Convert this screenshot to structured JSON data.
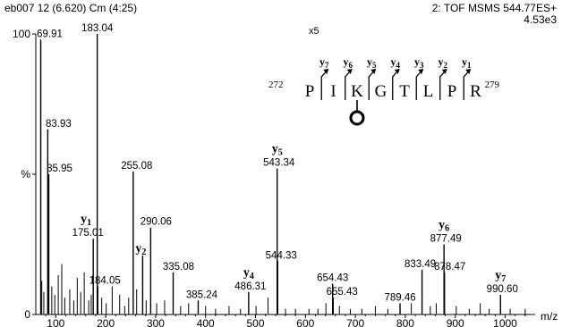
{
  "header": {
    "left": "eb007 12 (6.620) Cm (4:25)",
    "marker": "x5",
    "right_line1": "2: TOF MSMS 544.77ES+",
    "right_line2": "4.53e3"
  },
  "chart_data": {
    "type": "bar",
    "xlabel": "m/z",
    "ylabel": "%",
    "xlim": [
      60,
      1060
    ],
    "ylim": [
      0,
      100
    ],
    "x_ticks": [
      100,
      200,
      300,
      400,
      500,
      600,
      700,
      800,
      900,
      1000
    ],
    "y_ticks": [
      {
        "value": 100,
        "label": "100"
      },
      {
        "value": 50,
        "label": "%"
      },
      {
        "value": 0,
        "label": "0"
      }
    ],
    "peaks": [
      {
        "mz": 69.91,
        "intensity": 98,
        "label": "69.91"
      },
      {
        "mz": 83.93,
        "intensity": 66,
        "label": "83.93"
      },
      {
        "mz": 85.95,
        "intensity": 50,
        "label": "85.95"
      },
      {
        "mz": 175.01,
        "intensity": 27,
        "label": "175.01",
        "ion": "y1"
      },
      {
        "mz": 183.04,
        "intensity": 100,
        "label": "183.04"
      },
      {
        "mz": 184.05,
        "intensity": 10,
        "label": "184.05"
      },
      {
        "mz": 255.08,
        "intensity": 51,
        "label": "255.08"
      },
      {
        "mz": 274.0,
        "intensity": 21,
        "label": "",
        "ion": "y2"
      },
      {
        "mz": 290.06,
        "intensity": 31,
        "label": "290.06"
      },
      {
        "mz": 335.08,
        "intensity": 15,
        "label": "335.08"
      },
      {
        "mz": 385.24,
        "intensity": 5,
        "label": "385.24"
      },
      {
        "mz": 486.31,
        "intensity": 8,
        "label": "486.31",
        "ion": "y4"
      },
      {
        "mz": 543.34,
        "intensity": 52,
        "label": "543.34",
        "ion": "y5"
      },
      {
        "mz": 544.33,
        "intensity": 19,
        "label": "544.33"
      },
      {
        "mz": 654.43,
        "intensity": 11,
        "label": "654.43"
      },
      {
        "mz": 655.43,
        "intensity": 6,
        "label": "655.43"
      },
      {
        "mz": 789.46,
        "intensity": 4,
        "label": "789.46"
      },
      {
        "mz": 833.49,
        "intensity": 16,
        "label": "833.49"
      },
      {
        "mz": 877.49,
        "intensity": 25,
        "label": "877.49",
        "ion": "y6"
      },
      {
        "mz": 878.47,
        "intensity": 15,
        "label": "878.47"
      },
      {
        "mz": 990.6,
        "intensity": 7,
        "label": "990.60",
        "ion": "y7"
      }
    ],
    "noise": [
      {
        "mz": 72,
        "intensity": 12
      },
      {
        "mz": 76,
        "intensity": 8
      },
      {
        "mz": 92,
        "intensity": 10
      },
      {
        "mz": 98,
        "intensity": 7
      },
      {
        "mz": 105,
        "intensity": 14
      },
      {
        "mz": 112,
        "intensity": 18
      },
      {
        "mz": 118,
        "intensity": 6
      },
      {
        "mz": 128,
        "intensity": 9
      },
      {
        "mz": 136,
        "intensity": 5
      },
      {
        "mz": 143,
        "intensity": 13
      },
      {
        "mz": 150,
        "intensity": 8
      },
      {
        "mz": 157,
        "intensity": 15
      },
      {
        "mz": 166,
        "intensity": 5
      },
      {
        "mz": 171,
        "intensity": 7
      },
      {
        "mz": 192,
        "intensity": 6
      },
      {
        "mz": 201,
        "intensity": 4
      },
      {
        "mz": 213,
        "intensity": 10
      },
      {
        "mz": 228,
        "intensity": 7
      },
      {
        "mz": 238,
        "intensity": 3
      },
      {
        "mz": 246,
        "intensity": 6
      },
      {
        "mz": 262,
        "intensity": 9
      },
      {
        "mz": 281,
        "intensity": 5
      },
      {
        "mz": 302,
        "intensity": 4
      },
      {
        "mz": 318,
        "intensity": 5
      },
      {
        "mz": 350,
        "intensity": 3
      },
      {
        "mz": 366,
        "intensity": 4
      },
      {
        "mz": 400,
        "intensity": 3
      },
      {
        "mz": 420,
        "intensity": 2
      },
      {
        "mz": 447,
        "intensity": 3
      },
      {
        "mz": 470,
        "intensity": 2
      },
      {
        "mz": 501,
        "intensity": 3
      },
      {
        "mz": 525,
        "intensity": 6
      },
      {
        "mz": 560,
        "intensity": 2
      },
      {
        "mz": 580,
        "intensity": 2
      },
      {
        "mz": 607,
        "intensity": 2
      },
      {
        "mz": 625,
        "intensity": 2
      },
      {
        "mz": 641,
        "intensity": 4
      },
      {
        "mz": 668,
        "intensity": 3
      },
      {
        "mz": 690,
        "intensity": 2
      },
      {
        "mz": 713,
        "intensity": 2
      },
      {
        "mz": 740,
        "intensity": 3
      },
      {
        "mz": 765,
        "intensity": 2
      },
      {
        "mz": 812,
        "intensity": 4
      },
      {
        "mz": 850,
        "intensity": 3
      },
      {
        "mz": 862,
        "intensity": 4
      },
      {
        "mz": 902,
        "intensity": 3
      },
      {
        "mz": 928,
        "intensity": 2
      },
      {
        "mz": 950,
        "intensity": 4
      },
      {
        "mz": 968,
        "intensity": 2
      },
      {
        "mz": 1010,
        "intensity": 2
      },
      {
        "mz": 1040,
        "intensity": 2
      }
    ],
    "ion_labels": [
      {
        "ion": "y1",
        "base": "y",
        "sub": "1",
        "mz": 175.01
      },
      {
        "ion": "y2",
        "base": "y",
        "sub": "2",
        "mz": 274.0
      },
      {
        "ion": "y4",
        "base": "y",
        "sub": "4",
        "mz": 486.31
      },
      {
        "ion": "y5",
        "base": "y",
        "sub": "5",
        "mz": 543.34
      },
      {
        "ion": "y6",
        "base": "y",
        "sub": "6",
        "mz": 877.49
      },
      {
        "ion": "y7",
        "base": "y",
        "sub": "7",
        "mz": 990.6
      }
    ]
  },
  "sequence": {
    "start": "272",
    "end": "279",
    "residues": [
      "P",
      "I",
      "K",
      "G",
      "T",
      "L",
      "P",
      "R"
    ],
    "fragments": [
      {
        "base": "y",
        "sub": "7"
      },
      {
        "base": "y",
        "sub": "6"
      },
      {
        "base": "y",
        "sub": "5"
      },
      {
        "base": "y",
        "sub": "4"
      },
      {
        "base": "y",
        "sub": "3"
      },
      {
        "base": "y",
        "sub": "2"
      },
      {
        "base": "y",
        "sub": "1"
      }
    ],
    "modified_residue_index": 2
  }
}
